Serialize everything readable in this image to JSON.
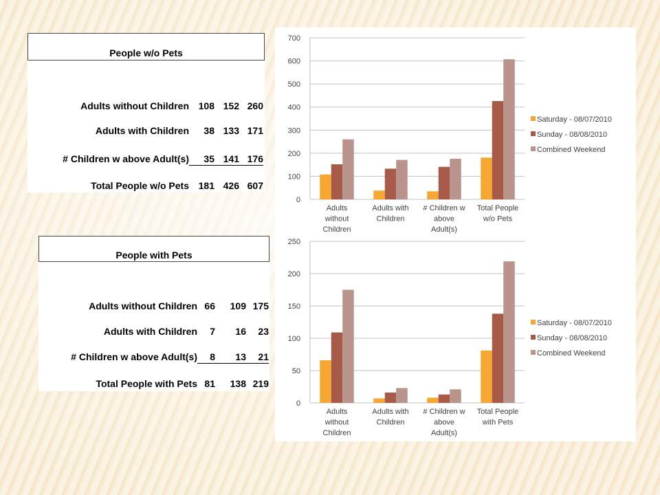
{
  "tables": [
    {
      "title": "People w/o Pets",
      "rows": [
        {
          "label": "Adults without Children",
          "v1": "108",
          "v2": "152",
          "v3": "260"
        },
        {
          "label": "Adults with Children",
          "v1": "38",
          "v2": "133",
          "v3": "171"
        },
        {
          "label": "# Children w above Adult(s)",
          "v1": "35",
          "v2": "141",
          "v3": "176"
        },
        {
          "label": "Total People w/o Pets",
          "v1": "181",
          "v2": "426",
          "v3": "607"
        }
      ]
    },
    {
      "title": "People with Pets",
      "rows": [
        {
          "label": "Adults without Children",
          "v1": "66",
          "v2": "109",
          "v3": "175"
        },
        {
          "label": "Adults with Children",
          "v1": "7",
          "v2": "16",
          "v3": "23"
        },
        {
          "label": "# Children w above Adult(s)",
          "v1": "8",
          "v2": "13",
          "v3": "21"
        },
        {
          "label": "Total People with Pets",
          "v1": "81",
          "v2": "138",
          "v3": "219"
        }
      ]
    }
  ],
  "chart_data": [
    {
      "type": "bar",
      "categories": [
        [
          "Adults",
          "without",
          "Children"
        ],
        [
          "Adults with",
          "Children"
        ],
        [
          "# Children w",
          "above",
          "Adult(s)"
        ],
        [
          "Total People",
          "w/o Pets"
        ]
      ],
      "series": [
        {
          "name": "Saturday - 08/07/2010",
          "values": [
            108,
            38,
            35,
            181
          ]
        },
        {
          "name": "Sunday - 08/08/2010",
          "values": [
            152,
            133,
            141,
            426
          ]
        },
        {
          "name": "Combined Weekend",
          "values": [
            260,
            171,
            176,
            607
          ]
        }
      ],
      "ylim": [
        0,
        700
      ],
      "yticks": [
        0,
        100,
        200,
        300,
        400,
        500,
        600,
        700
      ],
      "grid": true,
      "legend": "right"
    },
    {
      "type": "bar",
      "categories": [
        [
          "Adults",
          "without",
          "Children"
        ],
        [
          "Adults with",
          "Children"
        ],
        [
          "# Children w",
          "above",
          "Adult(s)"
        ],
        [
          "Total People",
          "with Pets"
        ]
      ],
      "series": [
        {
          "name": "Saturday - 08/07/2010",
          "values": [
            66,
            7,
            8,
            81
          ]
        },
        {
          "name": "Sunday - 08/08/2010",
          "values": [
            109,
            16,
            13,
            138
          ]
        },
        {
          "name": "Combined Weekend",
          "values": [
            175,
            23,
            21,
            219
          ]
        }
      ],
      "ylim": [
        0,
        250
      ],
      "yticks": [
        0,
        50,
        100,
        150,
        200,
        250
      ],
      "grid": true,
      "legend": "right"
    }
  ],
  "colors": {
    "series": [
      "#f5a732",
      "#a85a48",
      "#b8948c"
    ],
    "grid": "#c0c0c0",
    "axis_text": "#404040"
  }
}
